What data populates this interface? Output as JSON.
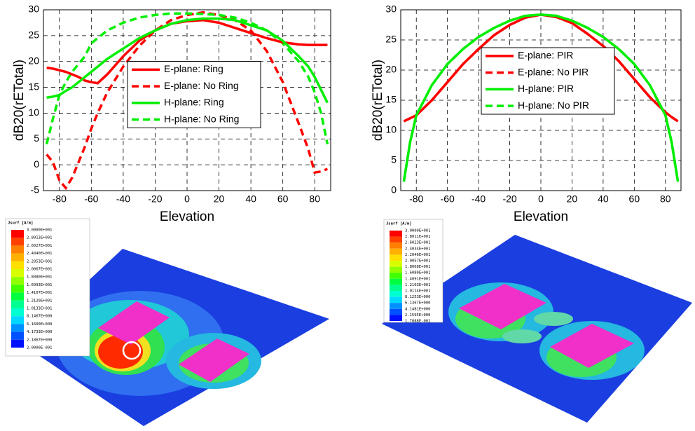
{
  "chart_data": [
    {
      "type": "line",
      "ylabel": "dB20(rETotal)",
      "xlabel": "Elevation",
      "x": [
        -88,
        -84,
        -80,
        -76,
        -72,
        -68,
        -64,
        -60,
        -56,
        -50,
        -40,
        -30,
        -20,
        -10,
        0,
        10,
        20,
        30,
        40,
        50,
        60,
        70,
        76,
        80,
        84,
        88
      ],
      "xlim": [
        -90,
        90
      ],
      "ylim": [
        -5,
        30
      ],
      "xticks": [
        -80,
        -60,
        -40,
        -20,
        0,
        20,
        40,
        60,
        80
      ],
      "yticks": [
        -5,
        0,
        5,
        10,
        15,
        20,
        25,
        30
      ],
      "grid": true,
      "legend": "center",
      "series": [
        {
          "name": "E-plane: Ring",
          "color": "#ff0000",
          "linestyle": "solid",
          "values": [
            18.8,
            18.6,
            18.3,
            18,
            17.5,
            17,
            16.3,
            16,
            15.8,
            17.5,
            21,
            24,
            26,
            27.3,
            27.8,
            28,
            27.5,
            26.5,
            25.5,
            24.5,
            23.7,
            23.3,
            23.2,
            23.2,
            23.2,
            23.2
          ]
        },
        {
          "name": "E-plane: No Ring",
          "color": "#ff0000",
          "linestyle": "dashed",
          "values": [
            2,
            0.5,
            -3,
            -4.5,
            -2.5,
            0.5,
            3.5,
            7,
            10,
            14,
            19,
            23,
            26,
            28,
            29,
            29.5,
            29,
            28,
            26,
            22,
            16,
            8,
            3,
            -1.5,
            -1.3,
            -0.8
          ]
        },
        {
          "name": "H-plane: Ring",
          "color": "#00ee00",
          "linestyle": "solid",
          "values": [
            13,
            13.2,
            13.5,
            14.3,
            15,
            16,
            17,
            18,
            19,
            20.5,
            22.5,
            24.5,
            26,
            27.3,
            28,
            28.3,
            28.3,
            28,
            27,
            26,
            24,
            21,
            19,
            17,
            14.5,
            12
          ]
        },
        {
          "name": "H-plane: No Ring",
          "color": "#00ee00",
          "linestyle": "dashed",
          "values": [
            4,
            9,
            13.5,
            16,
            18,
            19.5,
            21,
            23.5,
            24.5,
            26,
            27.5,
            28.5,
            29,
            29.3,
            29.3,
            29.2,
            29,
            28.5,
            27.5,
            26,
            23.5,
            20,
            17,
            14,
            10,
            4
          ]
        }
      ]
    },
    {
      "type": "line",
      "ylabel": "dB20(rETotal)",
      "xlabel": "Elevation",
      "x": [
        -88,
        -84,
        -80,
        -70,
        -60,
        -50,
        -40,
        -30,
        -20,
        -10,
        0,
        10,
        20,
        30,
        40,
        50,
        60,
        70,
        80,
        84,
        88
      ],
      "xlim": [
        -90,
        90
      ],
      "ylim": [
        0,
        30
      ],
      "xticks": [
        -80,
        -60,
        -40,
        -20,
        0,
        20,
        40,
        60,
        80
      ],
      "yticks": [
        0,
        5,
        10,
        15,
        20,
        25,
        30
      ],
      "grid": true,
      "legend": "upper center",
      "series": [
        {
          "name": "E-plane: PIR",
          "color": "#ff0000",
          "linestyle": "solid",
          "values": [
            11.5,
            12,
            12.5,
            15,
            18,
            21,
            23.5,
            25.8,
            27.5,
            28.7,
            29.2,
            28.8,
            27.8,
            26,
            24,
            21.5,
            18.5,
            15.5,
            13,
            12.2,
            11.5
          ]
        },
        {
          "name": "E-plane: No PIR",
          "color": "#ff0000",
          "linestyle": "dashed",
          "values": [
            11.5,
            12,
            12.5,
            15,
            18,
            21,
            23.5,
            25.8,
            27.5,
            28.7,
            29.2,
            28.8,
            27.8,
            26,
            24,
            21.5,
            18.5,
            15.5,
            13,
            12.2,
            11.5
          ]
        },
        {
          "name": "H-plane: PIR",
          "color": "#00ee00",
          "linestyle": "solid",
          "values": [
            1.5,
            8,
            12.5,
            17.5,
            21,
            23.5,
            25.5,
            27,
            28.2,
            29,
            29.2,
            29,
            28.2,
            27,
            25.5,
            23.5,
            21,
            17.5,
            12.5,
            8,
            1.5
          ]
        },
        {
          "name": "H-plane: No PIR",
          "color": "#00ee00",
          "linestyle": "dashed",
          "values": [
            1.5,
            8,
            12.5,
            17.5,
            21,
            23.5,
            25.5,
            27,
            28.2,
            29,
            29.2,
            29,
            28.2,
            27,
            25.5,
            23.5,
            21,
            17.5,
            12.5,
            8,
            1.5
          ]
        }
      ]
    }
  ],
  "simulations": [
    {
      "legend_title": "Jsurf [A/m]",
      "levels": [
        "3.0000E+001",
        "2.8013E+001",
        "2.6027E+001",
        "2.4040E+001",
        "2.2053E+001",
        "2.0067E+001",
        "1.8080E+001",
        "1.6093E+001",
        "1.4107E+001",
        "1.2120E+001",
        "1.0133E+001",
        "8.1467E+000",
        "6.1600E+000",
        "4.1733E+000",
        "2.1867E+000",
        "2.0000E-001"
      ]
    },
    {
      "legend_title": "Jsurf [A/m]",
      "levels": [
        "3.0000E+001",
        "2.8011E+001",
        "2.6023E+001",
        "2.4034E+001",
        "2.2046E+001",
        "2.0057E+001",
        "1.8068E+001",
        "1.6080E+001",
        "1.4091E+001",
        "1.2103E+001",
        "1.0114E+001",
        "8.1253E+000",
        "6.1367E+000",
        "4.1481E+000",
        "2.1595E+000",
        "1.7088E-001"
      ]
    }
  ]
}
